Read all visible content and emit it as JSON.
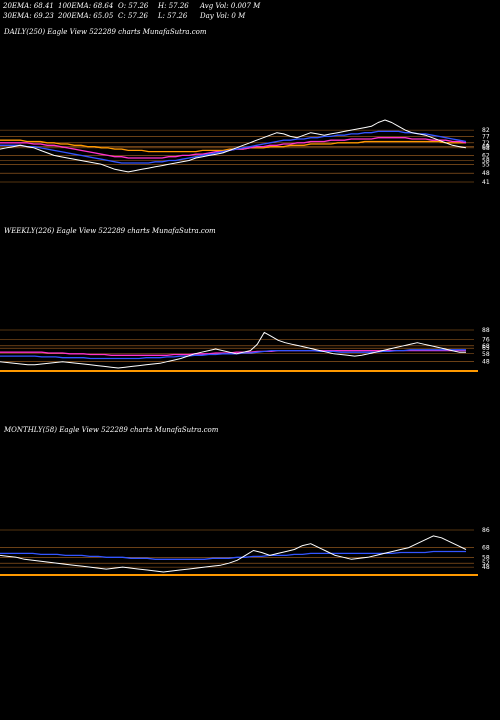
{
  "header": {
    "row1": [
      {
        "label": "20EMA: 68.41"
      },
      {
        "label": "100EMA: 68.64"
      },
      {
        "label": "O: 57.26"
      },
      {
        "label": "H: 57.26"
      },
      {
        "label": "Avg Vol: 0.007 M"
      }
    ],
    "row2": [
      {
        "label": "30EMA: 69.23"
      },
      {
        "label": "200EMA: 65.05"
      },
      {
        "label": "C: 57.26"
      },
      {
        "label": "L: 57.26"
      },
      {
        "label": "Day Vol: 0  M"
      }
    ]
  },
  "colors": {
    "background": "#000000",
    "price": "#ffffff",
    "ema_blue": "#3355ff",
    "ema_magenta": "#ff33cc",
    "ema_orange": "#ff9900",
    "support_lines": "#c8782a"
  },
  "chart_data": [
    {
      "type": "line",
      "panel": "daily",
      "title": "DAILY(250) Eagle   View  522289 charts MunafaSutra.com",
      "right_tick_labels": [
        "82",
        "77",
        "72",
        "69",
        "68",
        "62",
        "58",
        "55",
        "48",
        "41"
      ],
      "series": [
        {
          "values": [
            67,
            68,
            69,
            70,
            69,
            68,
            66,
            64,
            62,
            61,
            60,
            59,
            58,
            57,
            56,
            55,
            53,
            51,
            50,
            49,
            50,
            51,
            52,
            53,
            54,
            55,
            56,
            57,
            58,
            60,
            61,
            62,
            63,
            64,
            66,
            68,
            70,
            72,
            74,
            76,
            78,
            80,
            79,
            77,
            76,
            78,
            80,
            79,
            78,
            79,
            80,
            81,
            82,
            83,
            84,
            85,
            88,
            90,
            88,
            85,
            82,
            80,
            79,
            78,
            76,
            74,
            72,
            70,
            69,
            68
          ]
        },
        {
          "values": [
            70,
            70,
            70,
            70,
            69,
            69,
            68,
            67,
            66,
            65,
            64,
            63,
            62,
            61,
            60,
            59,
            58,
            57,
            56,
            56,
            56,
            56,
            56,
            57,
            57,
            58,
            58,
            59,
            60,
            61,
            62,
            63,
            64,
            65,
            66,
            67,
            68,
            69,
            70,
            71,
            72,
            73,
            74,
            74,
            75,
            75,
            76,
            76,
            77,
            77,
            78,
            78,
            79,
            79,
            80,
            80,
            81,
            81,
            81,
            81,
            80,
            80,
            79,
            79,
            78,
            77,
            76,
            75,
            74,
            73
          ]
        },
        {
          "values": [
            72,
            72,
            72,
            72,
            72,
            71,
            71,
            70,
            70,
            69,
            68,
            67,
            66,
            65,
            64,
            63,
            62,
            61,
            61,
            60,
            60,
            60,
            60,
            60,
            60,
            61,
            61,
            62,
            62,
            63,
            63,
            64,
            65,
            65,
            66,
            67,
            67,
            68,
            69,
            69,
            70,
            70,
            71,
            71,
            72,
            72,
            73,
            73,
            73,
            74,
            74,
            74,
            75,
            75,
            75,
            75,
            76,
            76,
            76,
            76,
            76,
            75,
            75,
            75,
            74,
            74,
            74,
            73,
            73,
            72
          ]
        },
        {
          "values": [
            74,
            74,
            74,
            74,
            73,
            73,
            73,
            72,
            72,
            71,
            71,
            70,
            70,
            69,
            69,
            68,
            68,
            67,
            67,
            66,
            66,
            66,
            65,
            65,
            65,
            65,
            65,
            65,
            65,
            65,
            66,
            66,
            66,
            66,
            67,
            67,
            67,
            68,
            68,
            68,
            69,
            69,
            69,
            70,
            70,
            70,
            71,
            71,
            71,
            71,
            72,
            72,
            72,
            72,
            73,
            73,
            73,
            73,
            73,
            73,
            73,
            73,
            73,
            73,
            73,
            73,
            72,
            72,
            72,
            72
          ]
        }
      ]
    },
    {
      "type": "line",
      "panel": "weekly",
      "title": "WEEKLY(226) Eagle   View  522289 charts MunafaSutra.com",
      "right_tick_labels": [
        "88",
        "76",
        "68",
        "65",
        "58",
        "48"
      ],
      "series": [
        {
          "values": [
            48,
            47,
            46,
            45,
            44,
            44,
            45,
            46,
            47,
            48,
            47,
            46,
            45,
            44,
            43,
            42,
            41,
            40,
            41,
            42,
            43,
            44,
            45,
            46,
            48,
            50,
            52,
            55,
            58,
            60,
            62,
            64,
            62,
            60,
            58,
            60,
            62,
            70,
            85,
            80,
            75,
            72,
            70,
            68,
            66,
            64,
            62,
            60,
            58,
            57,
            56,
            55,
            56,
            58,
            60,
            62,
            64,
            66,
            68,
            70,
            72,
            70,
            68,
            66,
            64,
            62,
            60,
            60
          ]
        },
        {
          "values": [
            55,
            55,
            55,
            55,
            55,
            55,
            54,
            54,
            54,
            53,
            53,
            53,
            53,
            52,
            52,
            52,
            52,
            52,
            52,
            52,
            52,
            53,
            53,
            53,
            54,
            54,
            55,
            55,
            56,
            56,
            57,
            57,
            58,
            58,
            58,
            59,
            59,
            60,
            61,
            62,
            62,
            62,
            62,
            62,
            62,
            62,
            61,
            61,
            61,
            60,
            60,
            60,
            60,
            60,
            60,
            61,
            61,
            62,
            62,
            63,
            63,
            63,
            63,
            63,
            63,
            63,
            63,
            63
          ]
        },
        {
          "values": [
            60,
            60,
            60,
            60,
            60,
            60,
            60,
            59,
            59,
            59,
            58,
            58,
            58,
            57,
            57,
            57,
            56,
            56,
            56,
            56,
            56,
            56,
            56,
            56,
            56,
            57,
            57,
            57,
            58,
            58,
            58,
            59,
            59,
            59,
            60,
            60,
            60,
            61,
            61,
            61,
            62,
            62,
            62,
            62,
            62,
            62,
            62,
            62,
            62,
            62,
            62,
            62,
            62,
            62,
            62,
            62,
            62,
            62,
            62,
            62,
            62,
            62,
            62,
            62,
            62,
            62,
            62,
            62
          ]
        }
      ]
    },
    {
      "type": "line",
      "panel": "monthly",
      "title": "MONTHLY(58) Eagle   View  522289 charts MunafaSutra.com",
      "right_tick_labels": [
        "86",
        "68",
        "58",
        "52",
        "48"
      ],
      "series": [
        {
          "values": [
            60,
            59,
            58,
            56,
            55,
            54,
            53,
            52,
            51,
            50,
            49,
            48,
            47,
            46,
            47,
            48,
            47,
            46,
            45,
            44,
            43,
            44,
            45,
            46,
            47,
            48,
            49,
            50,
            52,
            55,
            60,
            65,
            63,
            60,
            62,
            64,
            66,
            70,
            72,
            68,
            64,
            60,
            58,
            56,
            57,
            58,
            60,
            62,
            64,
            66,
            68,
            72,
            76,
            80,
            78,
            74,
            70,
            66
          ]
        },
        {
          "values": [
            62,
            62,
            62,
            62,
            62,
            61,
            61,
            61,
            60,
            60,
            60,
            59,
            59,
            58,
            58,
            58,
            57,
            57,
            57,
            56,
            56,
            56,
            56,
            56,
            56,
            56,
            57,
            57,
            57,
            58,
            58,
            59,
            59,
            60,
            60,
            60,
            61,
            61,
            62,
            62,
            62,
            62,
            62,
            62,
            62,
            62,
            62,
            62,
            62,
            63,
            63,
            63,
            63,
            64,
            64,
            64,
            64,
            64
          ]
        }
      ]
    }
  ]
}
